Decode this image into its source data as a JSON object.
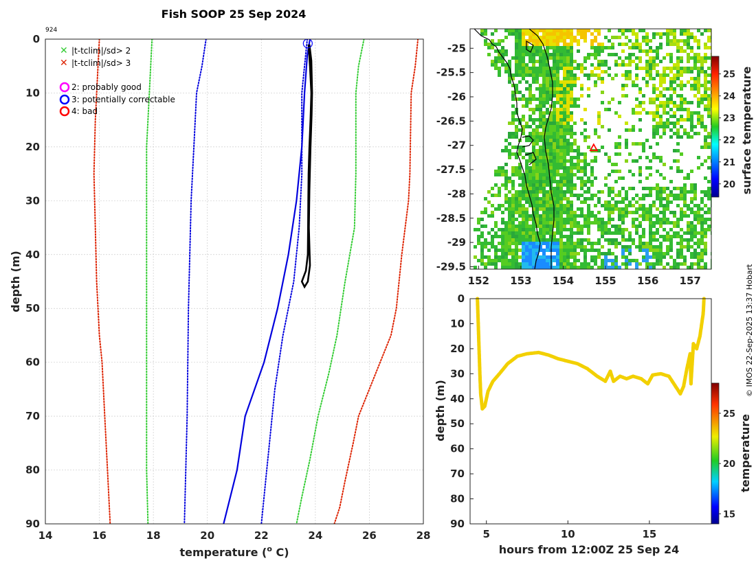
{
  "title": "Fish SOOP 25 Sep 2024",
  "profile_id": "924",
  "credit": "© IMOS 22-Sep-2025 13:37 Hobart",
  "legend": {
    "flag2": "|t-tclim|/sd> 2",
    "flag3": "|t-tclim|/sd> 3",
    "q2": "2: probably good",
    "q3": "3: potentially correctable",
    "q4": "4: bad"
  },
  "colors": {
    "clim_mean": "#0000dd",
    "sd2": "#33cc33",
    "sd3": "#dd2200",
    "profile": "#000000",
    "marker_good": "#ff00ff",
    "marker_corr": "#0000ff",
    "marker_bad": "#ff0000"
  },
  "chart_data": [
    {
      "type": "line",
      "name": "temperature-profile",
      "xlabel": "temperature (",
      "xlabel_deg": "o",
      "xlabel_unit": " C)",
      "ylabel": "depth (m)",
      "xlim": [
        14,
        28
      ],
      "ylim": [
        0,
        90
      ],
      "xticks": [
        "14",
        "16",
        "18",
        "20",
        "22",
        "24",
        "26",
        "28"
      ],
      "yticks": [
        "0",
        "10",
        "20",
        "30",
        "40",
        "50",
        "60",
        "70",
        "80",
        "90"
      ],
      "series": [
        {
          "name": "clim-mean",
          "style": "solid",
          "color": "#0000dd",
          "points": [
            [
              23.8,
              0
            ],
            [
              23.7,
              3
            ],
            [
              23.6,
              10
            ],
            [
              23.5,
              20
            ],
            [
              23.3,
              30
            ],
            [
              23.0,
              40
            ],
            [
              22.6,
              50
            ],
            [
              22.1,
              60
            ],
            [
              21.4,
              70
            ],
            [
              21.1,
              80
            ],
            [
              20.6,
              90
            ]
          ]
        },
        {
          "name": "clim-minus-1sd",
          "style": "dotted",
          "color": "#0000dd",
          "points": [
            [
              19.95,
              0
            ],
            [
              19.8,
              5
            ],
            [
              19.6,
              10
            ],
            [
              19.5,
              20
            ],
            [
              19.4,
              30
            ],
            [
              19.3,
              50
            ],
            [
              19.25,
              70
            ],
            [
              19.2,
              80
            ],
            [
              19.15,
              90
            ]
          ]
        },
        {
          "name": "clim-plus-1sd",
          "style": "dotted",
          "color": "#0000dd",
          "points": [
            [
              23.7,
              0
            ],
            [
              23.6,
              5
            ],
            [
              23.5,
              10
            ],
            [
              23.5,
              25
            ],
            [
              23.4,
              35
            ],
            [
              23.2,
              45
            ],
            [
              22.8,
              55
            ],
            [
              22.5,
              65
            ],
            [
              22.3,
              75
            ],
            [
              22.2,
              80
            ],
            [
              22.0,
              90
            ]
          ]
        },
        {
          "name": "clim-minus-2sd",
          "style": "dotted",
          "color": "#33cc33",
          "points": [
            [
              17.95,
              0
            ],
            [
              17.85,
              10
            ],
            [
              17.75,
              20
            ],
            [
              17.75,
              40
            ],
            [
              17.75,
              60
            ],
            [
              17.75,
              80
            ],
            [
              17.8,
              90
            ]
          ]
        },
        {
          "name": "clim-plus-2sd",
          "style": "dotted",
          "color": "#33cc33",
          "points": [
            [
              25.8,
              0
            ],
            [
              25.6,
              5
            ],
            [
              25.5,
              10
            ],
            [
              25.5,
              25
            ],
            [
              25.45,
              35
            ],
            [
              25.1,
              45
            ],
            [
              24.8,
              55
            ],
            [
              24.5,
              62
            ],
            [
              24.1,
              70
            ],
            [
              23.8,
              78
            ],
            [
              23.5,
              85
            ],
            [
              23.3,
              90
            ]
          ]
        },
        {
          "name": "clim-minus-3sd",
          "style": "dotted",
          "color": "#dd2200",
          "points": [
            [
              16.0,
              0
            ],
            [
              15.95,
              5
            ],
            [
              15.85,
              15
            ],
            [
              15.8,
              25
            ],
            [
              15.85,
              35
            ],
            [
              15.9,
              45
            ],
            [
              16.0,
              55
            ],
            [
              16.1,
              60
            ],
            [
              16.2,
              70
            ],
            [
              16.3,
              80
            ],
            [
              16.4,
              90
            ]
          ]
        },
        {
          "name": "clim-plus-3sd",
          "style": "dotted",
          "color": "#dd2200",
          "points": [
            [
              27.8,
              0
            ],
            [
              27.7,
              5
            ],
            [
              27.55,
              10
            ],
            [
              27.5,
              25
            ],
            [
              27.45,
              30
            ],
            [
              27.2,
              40
            ],
            [
              27.0,
              50
            ],
            [
              26.8,
              55
            ],
            [
              26.4,
              60
            ],
            [
              26.0,
              65
            ],
            [
              25.6,
              70
            ],
            [
              25.4,
              75
            ],
            [
              25.1,
              82
            ],
            [
              24.9,
              87
            ],
            [
              24.7,
              90
            ]
          ]
        },
        {
          "name": "observed-profile",
          "style": "solid",
          "color": "#000000",
          "points": [
            [
              23.75,
              1
            ],
            [
              23.8,
              5
            ],
            [
              23.85,
              10
            ],
            [
              23.82,
              15
            ],
            [
              23.78,
              20
            ],
            [
              23.75,
              25
            ],
            [
              23.74,
              30
            ],
            [
              23.73,
              35
            ],
            [
              23.72,
              40
            ],
            [
              23.65,
              43
            ],
            [
              23.5,
              45
            ],
            [
              23.6,
              46
            ],
            [
              23.72,
              45
            ],
            [
              23.8,
              42
            ],
            [
              23.76,
              35
            ],
            [
              23.78,
              28
            ],
            [
              23.82,
              20
            ],
            [
              23.86,
              14
            ],
            [
              23.88,
              10
            ],
            [
              23.85,
              4
            ],
            [
              23.78,
              1
            ]
          ]
        }
      ],
      "markers": [
        {
          "label": "start",
          "x": 23.72,
          "y": 0.8,
          "shape": "circle",
          "color": "#0000ff"
        }
      ]
    },
    {
      "type": "heatmap",
      "name": "surface-temperature-map",
      "xticks": [
        "152",
        "153",
        "154",
        "155",
        "156",
        "157"
      ],
      "yticks": [
        "-25",
        "-25.5",
        "-26",
        "-26.5",
        "-27",
        "-27.5",
        "-28",
        "-28.5",
        "-29",
        "-29.5"
      ],
      "xlim": [
        151.8,
        157.5
      ],
      "ylim": [
        -29.55,
        -24.6
      ],
      "colorbar_label": "surface temperature",
      "colorbar_ticks": [
        "20",
        "21",
        "22",
        "23",
        "24",
        "25"
      ],
      "colorbar_range": [
        19.4,
        25.8
      ],
      "location_marker": {
        "lon": 154.72,
        "lat": -27.05,
        "shape": "triangle",
        "color": "#ff0000"
      }
    },
    {
      "type": "scatter",
      "name": "depth-time-track",
      "xlabel": "hours from 12:00Z 25 Sep 24",
      "ylabel": "depth (m)",
      "xlim": [
        4.0,
        18.8
      ],
      "ylim": [
        0,
        90
      ],
      "xticks": [
        "5",
        "10",
        "15"
      ],
      "yticks": [
        "0",
        "10",
        "20",
        "30",
        "40",
        "50",
        "60",
        "70",
        "80",
        "90"
      ],
      "colorbar_label": "temperature",
      "colorbar_ticks": [
        "15",
        "20",
        "25"
      ],
      "colorbar_range": [
        14,
        28
      ],
      "color_value": 23.8,
      "points": [
        [
          4.45,
          0
        ],
        [
          4.5,
          10
        ],
        [
          4.55,
          20
        ],
        [
          4.6,
          30
        ],
        [
          4.65,
          38
        ],
        [
          4.75,
          44
        ],
        [
          4.9,
          43
        ],
        [
          5.1,
          37
        ],
        [
          5.4,
          33
        ],
        [
          5.8,
          30
        ],
        [
          6.3,
          26
        ],
        [
          6.9,
          23
        ],
        [
          7.5,
          22
        ],
        [
          8.2,
          21.5
        ],
        [
          8.8,
          22.5
        ],
        [
          9.4,
          24
        ],
        [
          10.0,
          25
        ],
        [
          10.6,
          26
        ],
        [
          11.2,
          28
        ],
        [
          11.8,
          31
        ],
        [
          12.3,
          33
        ],
        [
          12.6,
          29
        ],
        [
          12.8,
          33
        ],
        [
          13.2,
          31
        ],
        [
          13.6,
          32
        ],
        [
          14.0,
          31
        ],
        [
          14.5,
          32
        ],
        [
          14.9,
          34
        ],
        [
          15.2,
          30.5
        ],
        [
          15.7,
          30
        ],
        [
          16.2,
          31
        ],
        [
          16.6,
          35
        ],
        [
          16.9,
          38
        ],
        [
          17.1,
          35
        ],
        [
          17.3,
          28
        ],
        [
          17.5,
          22
        ],
        [
          17.55,
          34
        ],
        [
          17.7,
          18
        ],
        [
          17.9,
          20
        ],
        [
          18.1,
          15
        ],
        [
          18.3,
          6
        ],
        [
          18.35,
          0
        ]
      ]
    }
  ]
}
